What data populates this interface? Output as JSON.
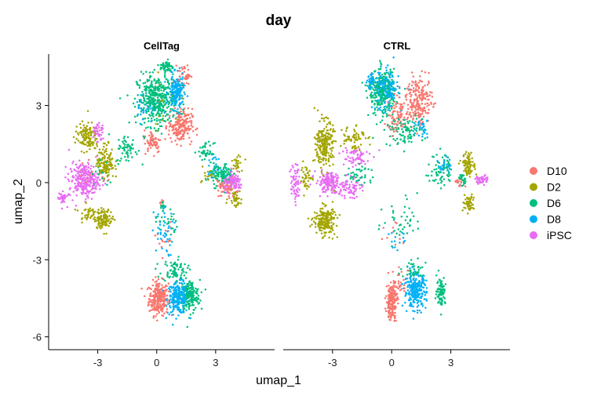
{
  "chart_data": {
    "type": "scatter",
    "title": "day",
    "xlabel": "umap_1",
    "ylabel": "umap_2",
    "xlim": [
      -5.5,
      6.0
    ],
    "ylim": [
      -6.5,
      5.0
    ],
    "x_ticks": [
      -3,
      0,
      3
    ],
    "y_ticks": [
      3,
      0,
      -3,
      -6
    ],
    "grid": false,
    "legend": {
      "position": "right",
      "entries": [
        {
          "name": "D10",
          "color": "#F8766D"
        },
        {
          "name": "D2",
          "color": "#A3A500"
        },
        {
          "name": "D6",
          "color": "#00BF7D"
        },
        {
          "name": "D8",
          "color": "#00B0F6"
        },
        {
          "name": "iPSC",
          "color": "#E76BF3"
        }
      ]
    },
    "facets": [
      {
        "label": "CellTag",
        "clusters": [
          {
            "series": "D10",
            "cx": 0.1,
            "cy": -4.5,
            "sx": 0.45,
            "sy": 0.6,
            "n": 260
          },
          {
            "series": "D8",
            "cx": 1.1,
            "cy": -4.5,
            "sx": 0.5,
            "sy": 0.55,
            "n": 240
          },
          {
            "series": "D6",
            "cx": 1.7,
            "cy": -4.4,
            "sx": 0.45,
            "sy": 0.55,
            "n": 180
          },
          {
            "series": "D6",
            "cx": 0.9,
            "cy": -3.4,
            "sx": 0.6,
            "sy": 0.4,
            "n": 80
          },
          {
            "series": "D8",
            "cx": 0.3,
            "cy": -2.0,
            "sx": 0.5,
            "sy": 0.8,
            "n": 40
          },
          {
            "series": "D6",
            "cx": 0.5,
            "cy": -1.5,
            "sx": 0.5,
            "sy": 0.6,
            "n": 25
          },
          {
            "series": "D10",
            "cx": 0.4,
            "cy": -2.2,
            "sx": 0.4,
            "sy": 0.6,
            "n": 15
          },
          {
            "series": "D6",
            "cx": 0.0,
            "cy": 3.2,
            "sx": 0.9,
            "sy": 0.9,
            "n": 400
          },
          {
            "series": "D8",
            "cx": 1.0,
            "cy": 3.5,
            "sx": 0.35,
            "sy": 0.6,
            "n": 180
          },
          {
            "series": "D10",
            "cx": 1.2,
            "cy": 2.2,
            "sx": 0.55,
            "sy": 0.6,
            "n": 200
          },
          {
            "series": "D10",
            "cx": 1.4,
            "cy": 4.2,
            "sx": 0.3,
            "sy": 0.35,
            "n": 40
          },
          {
            "series": "D6",
            "cx": 0.5,
            "cy": 4.5,
            "sx": 0.3,
            "sy": 0.25,
            "n": 50
          },
          {
            "series": "D10",
            "cx": -0.2,
            "cy": 1.6,
            "sx": 0.4,
            "sy": 0.4,
            "n": 60
          },
          {
            "series": "D6",
            "cx": -1.5,
            "cy": 1.3,
            "sx": 0.5,
            "sy": 0.5,
            "n": 60
          },
          {
            "series": "D8",
            "cx": -0.5,
            "cy": 3.0,
            "sx": 0.6,
            "sy": 0.6,
            "n": 40
          },
          {
            "series": "D2",
            "cx": 0.3,
            "cy": 3.2,
            "sx": 0.8,
            "sy": 0.8,
            "n": 20
          },
          {
            "series": "iPSC",
            "cx": -3.7,
            "cy": 0.1,
            "sx": 0.7,
            "sy": 0.6,
            "n": 260
          },
          {
            "series": "iPSC",
            "cx": -4.8,
            "cy": -0.6,
            "sx": 0.2,
            "sy": 0.25,
            "n": 40
          },
          {
            "series": "D2",
            "cx": -3.6,
            "cy": 1.8,
            "sx": 0.5,
            "sy": 0.5,
            "n": 120
          },
          {
            "series": "D2",
            "cx": -2.6,
            "cy": 0.8,
            "sx": 0.4,
            "sy": 0.6,
            "n": 130
          },
          {
            "series": "D2",
            "cx": -2.7,
            "cy": -1.4,
            "sx": 0.4,
            "sy": 0.35,
            "n": 110
          },
          {
            "series": "D2",
            "cx": -3.5,
            "cy": -1.2,
            "sx": 0.4,
            "sy": 0.3,
            "n": 40
          },
          {
            "series": "iPSC",
            "cx": -3.0,
            "cy": 2.0,
            "sx": 0.3,
            "sy": 0.4,
            "n": 40
          },
          {
            "series": "D10",
            "cx": -3.3,
            "cy": 0.3,
            "sx": 0.6,
            "sy": 0.6,
            "n": 20
          },
          {
            "series": "D6",
            "cx": -2.8,
            "cy": 0.2,
            "sx": 0.6,
            "sy": 0.6,
            "n": 20
          },
          {
            "series": "D6",
            "cx": 3.3,
            "cy": 0.3,
            "sx": 0.5,
            "sy": 0.4,
            "n": 110
          },
          {
            "series": "iPSC",
            "cx": 3.9,
            "cy": 0.0,
            "sx": 0.45,
            "sy": 0.3,
            "n": 120
          },
          {
            "series": "D10",
            "cx": 3.5,
            "cy": -0.2,
            "sx": 0.45,
            "sy": 0.4,
            "n": 60
          },
          {
            "series": "D2",
            "cx": 4.0,
            "cy": -0.6,
            "sx": 0.3,
            "sy": 0.3,
            "n": 40
          },
          {
            "series": "D2",
            "cx": 4.1,
            "cy": 0.8,
            "sx": 0.25,
            "sy": 0.3,
            "n": 25
          },
          {
            "series": "D8",
            "cx": 2.9,
            "cy": 0.6,
            "sx": 0.35,
            "sy": 0.35,
            "n": 30
          },
          {
            "series": "D6",
            "cx": 2.5,
            "cy": 1.2,
            "sx": 0.35,
            "sy": 0.3,
            "n": 40
          },
          {
            "series": "D2",
            "cx": 2.6,
            "cy": 0.3,
            "sx": 0.3,
            "sy": 0.3,
            "n": 15
          },
          {
            "series": "D6",
            "cx": 0.3,
            "cy": -0.9,
            "sx": 0.1,
            "sy": 0.15,
            "n": 12
          },
          {
            "series": "D10",
            "cx": 0.2,
            "cy": -0.8,
            "sx": 0.1,
            "sy": 0.12,
            "n": 6
          },
          {
            "series": "D8",
            "cx": 0.4,
            "cy": -1.0,
            "sx": 0.1,
            "sy": 0.15,
            "n": 5
          }
        ]
      },
      {
        "label": "CTRL",
        "clusters": [
          {
            "series": "D10",
            "cx": 0.0,
            "cy": -4.6,
            "sx": 0.25,
            "sy": 0.65,
            "n": 180
          },
          {
            "series": "D8",
            "cx": 1.2,
            "cy": -4.2,
            "sx": 0.5,
            "sy": 0.6,
            "n": 260
          },
          {
            "series": "D6",
            "cx": 2.5,
            "cy": -4.2,
            "sx": 0.2,
            "sy": 0.5,
            "n": 90
          },
          {
            "series": "D6",
            "cx": 1.2,
            "cy": -3.4,
            "sx": 0.7,
            "sy": 0.3,
            "n": 40
          },
          {
            "series": "D10",
            "cx": 0.4,
            "cy": -3.9,
            "sx": 0.3,
            "sy": 0.5,
            "n": 30
          },
          {
            "series": "D6",
            "cx": -0.5,
            "cy": 3.5,
            "sx": 0.6,
            "sy": 0.8,
            "n": 250
          },
          {
            "series": "D8",
            "cx": -0.3,
            "cy": 3.6,
            "sx": 0.6,
            "sy": 0.7,
            "n": 200
          },
          {
            "series": "D8",
            "cx": -1.0,
            "cy": 3.9,
            "sx": 0.25,
            "sy": 0.25,
            "n": 40
          },
          {
            "series": "D10",
            "cx": 1.4,
            "cy": 3.2,
            "sx": 0.6,
            "sy": 0.8,
            "n": 200
          },
          {
            "series": "D10",
            "cx": 0.3,
            "cy": 2.6,
            "sx": 0.6,
            "sy": 0.6,
            "n": 80
          },
          {
            "series": "D6",
            "cx": 0.6,
            "cy": 2.0,
            "sx": 0.9,
            "sy": 0.5,
            "n": 100
          },
          {
            "series": "D8",
            "cx": 1.6,
            "cy": 2.2,
            "sx": 0.3,
            "sy": 0.4,
            "n": 30
          },
          {
            "series": "D2",
            "cx": -2.0,
            "cy": 1.8,
            "sx": 0.6,
            "sy": 0.5,
            "n": 60
          },
          {
            "series": "iPSC",
            "cx": -1.9,
            "cy": 1.0,
            "sx": 0.7,
            "sy": 0.4,
            "n": 60
          },
          {
            "series": "D2",
            "cx": -3.4,
            "cy": 1.5,
            "sx": 0.4,
            "sy": 0.8,
            "n": 220
          },
          {
            "series": "D2",
            "cx": -3.4,
            "cy": -1.5,
            "sx": 0.5,
            "sy": 0.5,
            "n": 200
          },
          {
            "series": "iPSC",
            "cx": -3.2,
            "cy": 0.0,
            "sx": 0.6,
            "sy": 0.35,
            "n": 150
          },
          {
            "series": "iPSC",
            "cx": -4.9,
            "cy": 0.0,
            "sx": 0.2,
            "sy": 0.7,
            "n": 60
          },
          {
            "series": "iPSC",
            "cx": -2.2,
            "cy": -0.2,
            "sx": 0.6,
            "sy": 0.35,
            "n": 70
          },
          {
            "series": "D6",
            "cx": -1.6,
            "cy": 0.3,
            "sx": 0.6,
            "sy": 0.4,
            "n": 40
          },
          {
            "series": "D2",
            "cx": -4.3,
            "cy": 0.2,
            "sx": 0.3,
            "sy": 0.5,
            "n": 40
          },
          {
            "series": "D6",
            "cx": 2.5,
            "cy": 0.5,
            "sx": 0.5,
            "sy": 0.6,
            "n": 70
          },
          {
            "series": "D8",
            "cx": 2.7,
            "cy": 0.7,
            "sx": 0.3,
            "sy": 0.3,
            "n": 25
          },
          {
            "series": "D2",
            "cx": 3.9,
            "cy": 0.7,
            "sx": 0.3,
            "sy": 0.4,
            "n": 90
          },
          {
            "series": "D2",
            "cx": 3.9,
            "cy": -0.8,
            "sx": 0.25,
            "sy": 0.3,
            "n": 60
          },
          {
            "series": "iPSC",
            "cx": 4.6,
            "cy": 0.1,
            "sx": 0.3,
            "sy": 0.15,
            "n": 40
          },
          {
            "series": "D6",
            "cx": 3.6,
            "cy": 0.1,
            "sx": 0.2,
            "sy": 0.2,
            "n": 25
          },
          {
            "series": "D10",
            "cx": 3.4,
            "cy": 0.0,
            "sx": 0.2,
            "sy": 0.2,
            "n": 15
          },
          {
            "series": "D6",
            "cx": 0.5,
            "cy": -1.5,
            "sx": 1.0,
            "sy": 0.9,
            "n": 40
          },
          {
            "series": "D8",
            "cx": 0.3,
            "cy": -2.3,
            "sx": 0.5,
            "sy": 0.5,
            "n": 15
          },
          {
            "series": "D10",
            "cx": 0.0,
            "cy": -2.0,
            "sx": 0.5,
            "sy": 0.6,
            "n": 10
          }
        ]
      }
    ]
  }
}
